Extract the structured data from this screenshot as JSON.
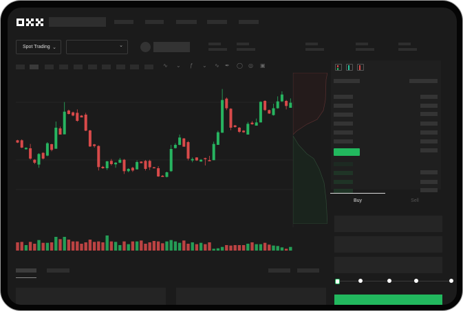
{
  "header": {
    "logo": "OKX",
    "nav_items": [
      "",
      "",
      "",
      "",
      ""
    ]
  },
  "toolbar": {
    "mode_dropdown": "Spot Trading",
    "pair_dropdown": ""
  },
  "order_form": {
    "buy_tab": "Buy",
    "sell_tab": "Sell",
    "active_tab": "Buy",
    "slider_level_percent": 0,
    "slider_marks": [
      0,
      25,
      50,
      75,
      100
    ]
  },
  "colors": {
    "up": "#27b460",
    "down": "#d84a4a",
    "background": "#1b1b1b",
    "accent": "#22b85e"
  },
  "icons": [
    "okx-logo",
    "chevron-down-icon",
    "indicator-icon",
    "draw-line-icon",
    "camera-icon",
    "settings-icon",
    "fullscreen-icon",
    "orderbook-both-icon",
    "orderbook-bids-icon",
    "orderbook-asks-icon"
  ],
  "chart_data": {
    "type": "candlestick",
    "candles": [
      [
        220,
        222,
        208,
        210
      ],
      [
        220,
        224,
        186,
        188
      ],
      [
        181,
        189,
        179,
        187
      ],
      [
        185,
        204,
        135,
        140
      ],
      [
        135,
        138,
        116,
        122
      ],
      [
        114,
        164,
        100,
        160
      ],
      [
        165,
        168,
        136,
        140
      ],
      [
        153,
        212,
        150,
        207
      ],
      [
        203,
        205,
        172,
        178
      ],
      [
        183,
        302,
        183,
        275
      ],
      [
        272,
        280,
        245,
        245
      ],
      [
        246,
        387,
        246,
        345
      ],
      [
        350,
        354,
        333,
        335
      ],
      [
        342,
        345,
        325,
        328
      ],
      [
        340,
        355,
        301,
        305
      ],
      [
        328,
        330,
        320,
        320
      ],
      [
        332,
        340,
        260,
        262
      ],
      [
        263,
        266,
        191,
        193
      ],
      [
        202,
        204,
        188,
        195
      ],
      [
        195,
        198,
        88,
        103
      ],
      [
        104,
        108,
        95,
        98
      ],
      [
        98,
        130,
        90,
        128
      ],
      [
        130,
        138,
        110,
        116
      ],
      [
        115,
        125,
        100,
        122
      ],
      [
        122,
        143,
        120,
        135
      ],
      [
        135,
        138,
        73,
        85
      ],
      [
        85,
        98,
        80,
        95
      ],
      [
        100,
        104,
        82,
        88
      ],
      [
        93,
        132,
        92,
        125
      ],
      [
        127,
        128,
        120,
        120
      ],
      [
        130,
        134,
        88,
        95
      ],
      [
        130,
        135,
        90,
        102
      ],
      [
        102,
        104,
        98,
        98
      ],
      [
        98,
        107,
        60,
        62
      ],
      [
        65,
        68,
        60,
        60
      ],
      [
        60,
        83,
        58,
        80
      ],
      [
        85,
        200,
        82,
        182
      ],
      [
        186,
        207,
        184,
        200
      ],
      [
        200,
        245,
        198,
        232
      ],
      [
        228,
        230,
        192,
        192
      ],
      [
        212,
        217,
        132,
        140
      ],
      [
        132,
        145,
        124,
        138
      ],
      [
        145,
        146,
        130,
        132
      ],
      [
        127,
        138,
        127,
        135
      ],
      [
        142,
        144,
        110,
        138
      ],
      [
        133,
        152,
        128,
        128
      ],
      [
        133,
        214,
        133,
        204
      ],
      [
        200,
        262,
        200,
        255
      ],
      [
        253,
        444,
        253,
        396
      ],
      [
        402,
        407,
        352,
        360
      ],
      [
        358,
        360,
        264,
        275
      ],
      [
        285,
        287,
        275,
        278
      ],
      [
        275,
        278,
        252,
        257
      ],
      [
        262,
        264,
        253,
        255
      ],
      [
        245,
        300,
        245,
        292
      ],
      [
        297,
        304,
        288,
        290
      ],
      [
        284,
        315,
        284,
        298
      ],
      [
        298,
        390,
        298,
        388
      ],
      [
        392,
        395,
        348,
        352
      ],
      [
        352,
        354,
        335,
        337
      ],
      [
        330,
        380,
        328,
        360
      ],
      [
        360,
        412,
        358,
        390
      ],
      [
        390,
        434,
        388,
        420
      ],
      [
        392,
        396,
        355,
        370
      ],
      [
        362,
        403,
        362,
        384
      ]
    ],
    "volume": [
      36,
      38,
      24,
      38,
      30,
      46,
      34,
      34,
      36,
      60,
      50,
      60,
      48,
      40,
      40,
      30,
      36,
      48,
      38,
      40,
      36,
      66,
      40,
      38,
      24,
      40,
      28,
      40,
      40,
      44,
      30,
      36,
      42,
      40,
      32,
      40,
      46,
      40,
      34,
      44,
      30,
      36,
      28,
      34,
      28,
      36,
      8,
      10,
      16,
      24,
      22,
      24,
      24,
      24,
      30,
      36,
      28,
      28,
      34,
      26,
      22,
      20,
      14,
      8,
      16
    ],
    "grid": true
  }
}
